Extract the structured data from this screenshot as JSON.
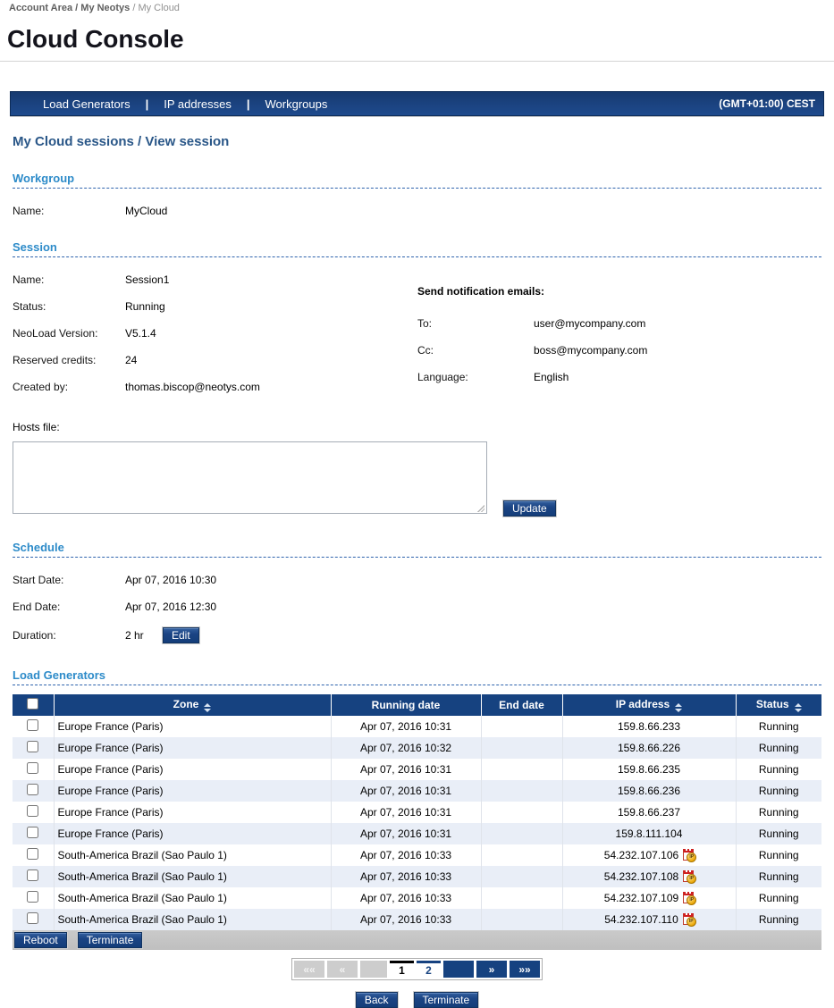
{
  "breadcrumb": {
    "path": "Account Area / My Neotys",
    "current": " / My Cloud"
  },
  "header": {
    "title": "Cloud Console"
  },
  "nav": {
    "items": [
      "Load Generators",
      "IP addresses",
      "Workgroups"
    ],
    "separator": "|",
    "timezone": "(GMT+01:00) CEST"
  },
  "section_title": "My Cloud sessions / View session",
  "workgroup": {
    "heading": "Workgroup",
    "fields": [
      {
        "label": "Name:",
        "value": "MyCloud"
      }
    ]
  },
  "session": {
    "heading": "Session",
    "fields": [
      {
        "label": "Name:",
        "value": "Session1"
      },
      {
        "label": "Status:",
        "value": "Running"
      },
      {
        "label": "NeoLoad Version:",
        "value": "V5.1.4"
      },
      {
        "label": "Reserved credits:",
        "value": "24"
      },
      {
        "label": "Created by:",
        "value": "thomas.biscop@neotys.com"
      }
    ],
    "hosts_file_label": "Hosts file:",
    "hosts_file_value": "",
    "update_button": "Update",
    "notifications": {
      "heading": "Send notification emails:",
      "fields": [
        {
          "label": "To:",
          "value": "user@mycompany.com"
        },
        {
          "label": "Cc:",
          "value": "boss@mycompany.com"
        },
        {
          "label": "Language:",
          "value": "English"
        }
      ]
    }
  },
  "schedule": {
    "heading": "Schedule",
    "fields": [
      {
        "label": "Start Date:",
        "value": "Apr 07, 2016 10:30"
      },
      {
        "label": "End Date:",
        "value": "Apr 07, 2016 12:30"
      }
    ],
    "duration_label": "Duration:",
    "duration_value": "2 hr",
    "edit_button": "Edit"
  },
  "load_generators": {
    "heading": "Load Generators",
    "columns": [
      {
        "label": "Zone",
        "sortable": true
      },
      {
        "label": "Running date",
        "sortable": false
      },
      {
        "label": "End date",
        "sortable": false
      },
      {
        "label": "IP address",
        "sortable": true
      },
      {
        "label": "Status",
        "sortable": true
      }
    ],
    "rows": [
      {
        "zone": "Europe France (Paris)",
        "running_date": "Apr 07, 2016 10:31",
        "end_date": "",
        "ip": "159.8.66.233",
        "reserved_ip_icon": false,
        "status": "Running"
      },
      {
        "zone": "Europe France (Paris)",
        "running_date": "Apr 07, 2016 10:32",
        "end_date": "",
        "ip": "159.8.66.226",
        "reserved_ip_icon": false,
        "status": "Running"
      },
      {
        "zone": "Europe France (Paris)",
        "running_date": "Apr 07, 2016 10:31",
        "end_date": "",
        "ip": "159.8.66.235",
        "reserved_ip_icon": false,
        "status": "Running"
      },
      {
        "zone": "Europe France (Paris)",
        "running_date": "Apr 07, 2016 10:31",
        "end_date": "",
        "ip": "159.8.66.236",
        "reserved_ip_icon": false,
        "status": "Running"
      },
      {
        "zone": "Europe France (Paris)",
        "running_date": "Apr 07, 2016 10:31",
        "end_date": "",
        "ip": "159.8.66.237",
        "reserved_ip_icon": false,
        "status": "Running"
      },
      {
        "zone": "Europe France (Paris)",
        "running_date": "Apr 07, 2016 10:31",
        "end_date": "",
        "ip": "159.8.111.104",
        "reserved_ip_icon": false,
        "status": "Running"
      },
      {
        "zone": "South-America Brazil (Sao Paulo 1)",
        "running_date": "Apr 07, 2016 10:33",
        "end_date": "",
        "ip": "54.232.107.106",
        "reserved_ip_icon": true,
        "status": "Running"
      },
      {
        "zone": "South-America Brazil (Sao Paulo 1)",
        "running_date": "Apr 07, 2016 10:33",
        "end_date": "",
        "ip": "54.232.107.108",
        "reserved_ip_icon": true,
        "status": "Running"
      },
      {
        "zone": "South-America Brazil (Sao Paulo 1)",
        "running_date": "Apr 07, 2016 10:33",
        "end_date": "",
        "ip": "54.232.107.109",
        "reserved_ip_icon": true,
        "status": "Running"
      },
      {
        "zone": "South-America Brazil (Sao Paulo 1)",
        "running_date": "Apr 07, 2016 10:33",
        "end_date": "",
        "ip": "54.232.107.110",
        "reserved_ip_icon": true,
        "status": "Running"
      }
    ],
    "reboot_button": "Reboot",
    "terminate_button": "Terminate"
  },
  "pagination": {
    "first_label": "««",
    "prev_label": "«",
    "pages": [
      {
        "label": "1",
        "active": true
      },
      {
        "label": "2",
        "active": false
      }
    ],
    "next_label": "»",
    "last_label": "»»"
  },
  "footer": {
    "back_button": "Back",
    "terminate_button": "Terminate"
  },
  "colors": {
    "navy": "#16427F",
    "section_heading_blue": "#2D8BC9",
    "subtitle_blue": "#2A5788",
    "alt_row": "#E9EEF7",
    "table_footer_gray": "#C2C2C2"
  }
}
